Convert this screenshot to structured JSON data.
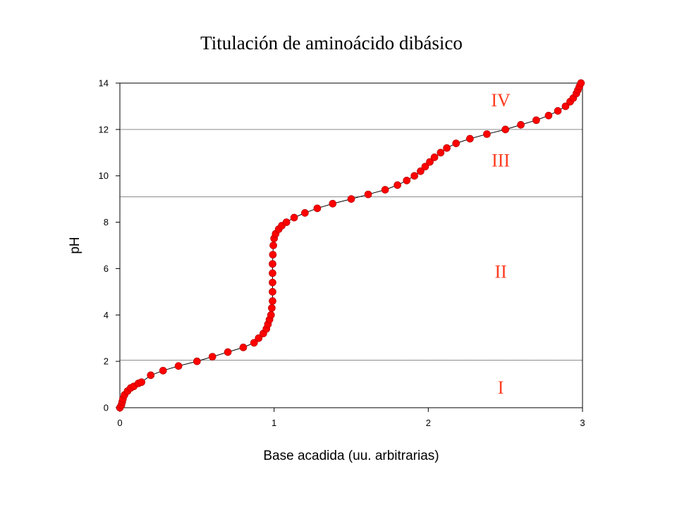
{
  "chart_data": {
    "type": "scatter",
    "title": "Titulación de aminoácido dibásico",
    "xlabel": "Base acadida (uu. arbitrarias)",
    "ylabel": "pH",
    "xlim": [
      0,
      3
    ],
    "ylim": [
      0,
      14
    ],
    "xticks": [
      "0",
      "1",
      "2",
      "3"
    ],
    "yticks": [
      "0",
      "2",
      "4",
      "6",
      "8",
      "10",
      "12",
      "14"
    ],
    "reference_lines_y": [
      2.05,
      9.1,
      12.0
    ],
    "grid": false,
    "legend": "none",
    "series": [
      {
        "marker_color": "#ff0000",
        "line_color": "#000000",
        "points": [
          [
            0.0,
            0.0
          ],
          [
            0.01,
            0.12
          ],
          [
            0.015,
            0.25
          ],
          [
            0.02,
            0.38
          ],
          [
            0.03,
            0.55
          ],
          [
            0.05,
            0.72
          ],
          [
            0.07,
            0.85
          ],
          [
            0.09,
            0.92
          ],
          [
            0.12,
            1.05
          ],
          [
            0.14,
            1.1
          ],
          [
            0.2,
            1.4
          ],
          [
            0.28,
            1.6
          ],
          [
            0.38,
            1.8
          ],
          [
            0.5,
            2.0
          ],
          [
            0.6,
            2.2
          ],
          [
            0.7,
            2.4
          ],
          [
            0.8,
            2.6
          ],
          [
            0.87,
            2.8
          ],
          [
            0.9,
            3.0
          ],
          [
            0.93,
            3.2
          ],
          [
            0.95,
            3.4
          ],
          [
            0.96,
            3.6
          ],
          [
            0.97,
            3.8
          ],
          [
            0.98,
            4.0
          ],
          [
            0.985,
            4.3
          ],
          [
            0.99,
            4.6
          ],
          [
            0.99,
            5.0
          ],
          [
            0.99,
            5.4
          ],
          [
            0.99,
            5.8
          ],
          [
            0.99,
            6.2
          ],
          [
            0.992,
            6.6
          ],
          [
            0.995,
            7.0
          ],
          [
            1.0,
            7.3
          ],
          [
            1.01,
            7.5
          ],
          [
            1.03,
            7.7
          ],
          [
            1.05,
            7.85
          ],
          [
            1.08,
            8.0
          ],
          [
            1.13,
            8.2
          ],
          [
            1.2,
            8.4
          ],
          [
            1.28,
            8.6
          ],
          [
            1.38,
            8.8
          ],
          [
            1.5,
            9.0
          ],
          [
            1.61,
            9.2
          ],
          [
            1.72,
            9.4
          ],
          [
            1.8,
            9.6
          ],
          [
            1.86,
            9.8
          ],
          [
            1.91,
            10.0
          ],
          [
            1.95,
            10.2
          ],
          [
            1.98,
            10.4
          ],
          [
            2.01,
            10.6
          ],
          [
            2.04,
            10.8
          ],
          [
            2.08,
            11.0
          ],
          [
            2.12,
            11.2
          ],
          [
            2.18,
            11.4
          ],
          [
            2.27,
            11.6
          ],
          [
            2.38,
            11.8
          ],
          [
            2.5,
            12.0
          ],
          [
            2.6,
            12.2
          ],
          [
            2.7,
            12.4
          ],
          [
            2.78,
            12.6
          ],
          [
            2.84,
            12.8
          ],
          [
            2.89,
            13.0
          ],
          [
            2.92,
            13.2
          ],
          [
            2.94,
            13.35
          ],
          [
            2.96,
            13.55
          ],
          [
            2.97,
            13.7
          ],
          [
            2.98,
            13.85
          ],
          [
            2.99,
            14.0
          ]
        ]
      }
    ],
    "annotations": [
      {
        "text": "IV",
        "x": 2.47,
        "y": 13.0
      },
      {
        "text": "III",
        "x": 2.47,
        "y": 10.4
      },
      {
        "text": "II",
        "x": 2.47,
        "y": 5.6
      },
      {
        "text": "I",
        "x": 2.47,
        "y": 0.6
      }
    ]
  }
}
